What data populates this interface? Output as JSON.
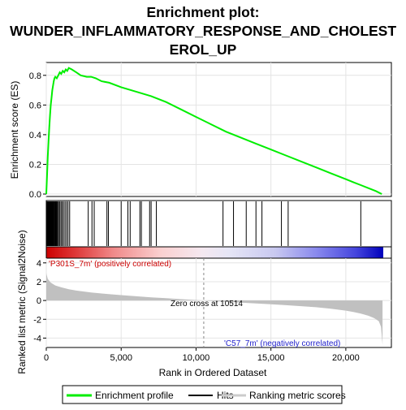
{
  "chart_data": {
    "type": "line",
    "title_lines": [
      "Enrichment plot:",
      "WUNDER_INFLAMMATORY_RESPONSE_AND_CHOLEST",
      "EROL_UP"
    ],
    "top_panel": {
      "ylabel": "Enrichment score (ES)",
      "ylim": [
        0,
        0.87
      ],
      "yticks": [
        "0.0",
        "0.2",
        "0.4",
        "0.6",
        "0.8"
      ],
      "ytick_values": [
        0.0,
        0.2,
        0.4,
        0.6,
        0.8
      ],
      "grid": true
    },
    "bottom_panel": {
      "ylabel": "Ranked list metric (Signal2Noise)",
      "ylim": [
        -5,
        4.5
      ],
      "yticks": [
        "4",
        "2",
        "0",
        "-2",
        "-4"
      ],
      "ytick_values": [
        4,
        2,
        0,
        -2,
        -4
      ],
      "grid": true
    },
    "xlabel": "Rank in Ordered Dataset",
    "xlim": [
      0,
      22500
    ],
    "xticks": [
      "0",
      "5,000",
      "10,000",
      "15,000",
      "20,000"
    ],
    "xtick_values": [
      0,
      5000,
      10000,
      15000,
      20000
    ],
    "annotations": {
      "positive": "'P301S_7m' (positively correlated)",
      "negative": "'C57_7m' (negatively correlated)",
      "zero_cross": "Zero cross at 10514",
      "zero_cross_rank": 10514
    },
    "series": [
      {
        "name": "Enrichment profile",
        "color": "#00ee00",
        "x": [
          0,
          50,
          100,
          150,
          200,
          250,
          300,
          350,
          400,
          450,
          500,
          550,
          600,
          700,
          800,
          900,
          1000,
          1100,
          1200,
          1300,
          1400,
          1500,
          1700,
          2000,
          2300,
          2700,
          3000,
          3300,
          3700,
          4200,
          5000,
          6000,
          7000,
          8000,
          9000,
          10000,
          11000,
          12000,
          13000,
          14000,
          15000,
          16000,
          17000,
          18000,
          19000,
          20000,
          20500,
          21000,
          21500,
          22000,
          22400
        ],
        "y": [
          0.0,
          0.12,
          0.25,
          0.36,
          0.45,
          0.53,
          0.6,
          0.65,
          0.7,
          0.73,
          0.76,
          0.78,
          0.79,
          0.78,
          0.8,
          0.82,
          0.81,
          0.83,
          0.82,
          0.84,
          0.83,
          0.85,
          0.84,
          0.82,
          0.8,
          0.79,
          0.79,
          0.78,
          0.76,
          0.75,
          0.72,
          0.69,
          0.66,
          0.62,
          0.57,
          0.52,
          0.47,
          0.42,
          0.38,
          0.34,
          0.3,
          0.26,
          0.22,
          0.18,
          0.14,
          0.1,
          0.08,
          0.06,
          0.04,
          0.02,
          0.0
        ]
      }
    ],
    "hits": [
      20,
      40,
      60,
      80,
      100,
      120,
      140,
      160,
      180,
      200,
      220,
      240,
      260,
      280,
      300,
      320,
      340,
      360,
      380,
      400,
      420,
      450,
      480,
      520,
      560,
      600,
      650,
      700,
      760,
      820,
      900,
      980,
      1060,
      1150,
      1250,
      1350,
      1450,
      1560,
      2800,
      3050,
      3200,
      4050,
      4150,
      5000,
      5450,
      5600,
      6250,
      6350,
      6900,
      7000,
      7350,
      11800,
      12500,
      13350,
      14000,
      14400,
      15700,
      16150,
      21000
    ],
    "metric_curve": {
      "x": [
        0,
        100,
        300,
        600,
        1000,
        1500,
        2000,
        3000,
        4000,
        5000,
        6000,
        7000,
        8000,
        9000,
        10000,
        10514,
        11000,
        12000,
        13000,
        14000,
        15000,
        16000,
        17000,
        18000,
        19000,
        20000,
        20500,
        21000,
        21500,
        21900,
        22200,
        22350,
        22450
      ],
      "y": [
        2.9,
        2.3,
        1.9,
        1.6,
        1.4,
        1.2,
        1.05,
        0.85,
        0.7,
        0.57,
        0.45,
        0.34,
        0.24,
        0.14,
        0.05,
        0.0,
        -0.06,
        -0.15,
        -0.23,
        -0.31,
        -0.4,
        -0.5,
        -0.6,
        -0.72,
        -0.88,
        -1.08,
        -1.22,
        -1.4,
        -1.62,
        -1.88,
        -2.2,
        -2.8,
        -4.7
      ]
    },
    "legend": {
      "items": [
        "Enrichment profile",
        "Hits",
        "Ranking metric scores"
      ],
      "colors": [
        "#00ee00",
        "#000000",
        "#cccccc"
      ]
    },
    "colors": {
      "positive_text": "#cc0000",
      "negative_text": "#2222cc",
      "metric_fill": "#c0c0c0",
      "grid": "#e4e4e4"
    }
  }
}
